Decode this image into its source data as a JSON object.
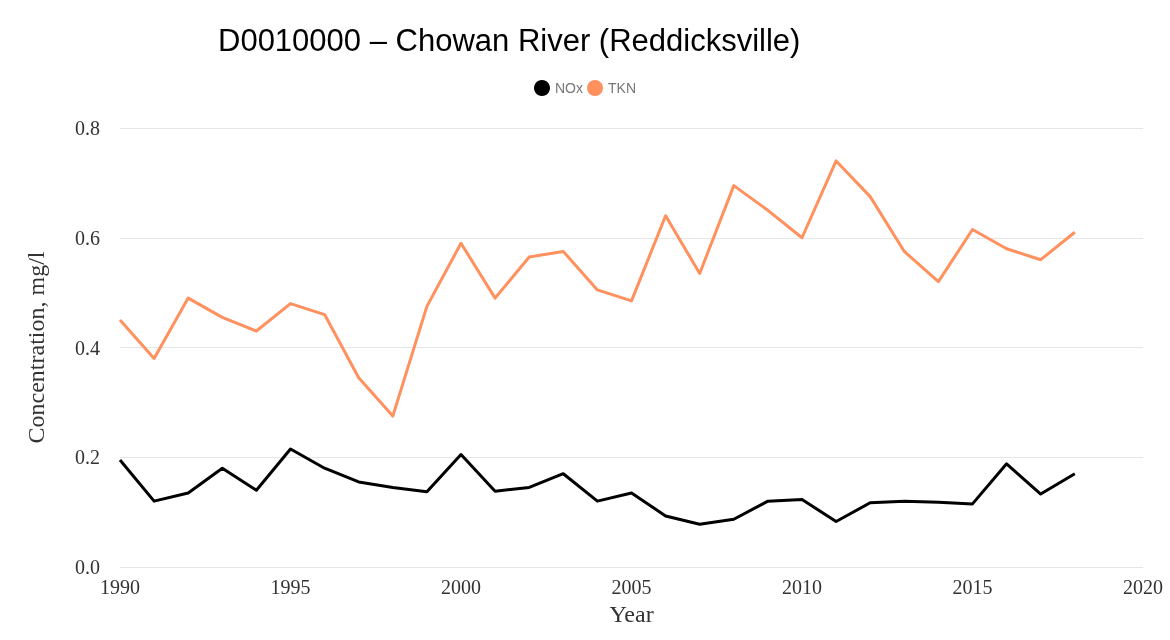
{
  "chart_data": {
    "type": "line",
    "title": "D0010000 – Chowan River (Reddicksville)",
    "xlabel": "Year",
    "ylabel": "Concentration, mg/l",
    "x": [
      1990,
      1991,
      1992,
      1993,
      1994,
      1995,
      1996,
      1997,
      1998,
      1999,
      2000,
      2001,
      2002,
      2003,
      2004,
      2005,
      2006,
      2007,
      2008,
      2009,
      2010,
      2011,
      2012,
      2013,
      2014,
      2015,
      2016,
      2017,
      2018
    ],
    "series": [
      {
        "name": "NOx",
        "color": "#000000",
        "values": [
          0.195,
          0.12,
          0.135,
          0.18,
          0.14,
          0.215,
          0.18,
          0.155,
          0.145,
          0.137,
          0.205,
          0.138,
          0.145,
          0.17,
          0.12,
          0.135,
          0.093,
          0.078,
          0.087,
          0.12,
          0.123,
          0.083,
          0.117,
          0.12,
          0.118,
          0.115,
          0.188,
          0.133,
          0.17
        ]
      },
      {
        "name": "TKN",
        "color": "#ff915f",
        "values": [
          0.45,
          0.38,
          0.49,
          0.455,
          0.43,
          0.48,
          0.46,
          0.345,
          0.275,
          0.475,
          0.59,
          0.49,
          0.565,
          0.575,
          0.505,
          0.485,
          0.64,
          0.535,
          0.695,
          0.65,
          0.6,
          0.74,
          0.675,
          0.575,
          0.52,
          0.615,
          0.58,
          0.56,
          0.61
        ]
      }
    ],
    "xlim": [
      1990,
      2020
    ],
    "xticks": [
      1990,
      1995,
      2000,
      2005,
      2010,
      2015,
      2020
    ],
    "ylim": [
      0,
      0.8
    ],
    "yticks": [
      {
        "value": 0,
        "label": "0.0"
      },
      {
        "value": 0.2,
        "label": "0.2"
      },
      {
        "value": 0.4,
        "label": "0.4"
      },
      {
        "value": 0.6,
        "label": "0.6"
      },
      {
        "value": 0.8,
        "label": "0.8"
      }
    ],
    "grid": "y",
    "legend": "top",
    "marker": "none",
    "line_style": "solid"
  }
}
